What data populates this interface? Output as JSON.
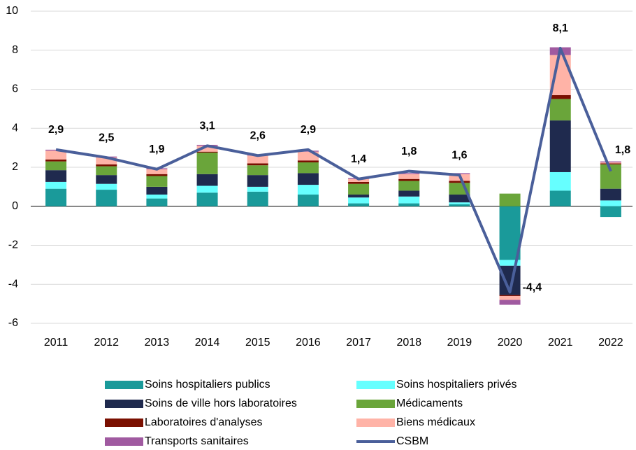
{
  "chart_data": {
    "type": "bar",
    "categories": [
      "2011",
      "2012",
      "2013",
      "2014",
      "2015",
      "2016",
      "2017",
      "2018",
      "2019",
      "2020",
      "2021",
      "2022"
    ],
    "series": [
      {
        "name": "Soins hospitaliers publics",
        "color": "#1a9a9a",
        "values": [
          0.9,
          0.85,
          0.4,
          0.7,
          0.75,
          0.6,
          0.15,
          0.15,
          0.1,
          -2.75,
          0.8,
          -0.55
        ]
      },
      {
        "name": "Soins hospitaliers privés",
        "color": "#66ffff",
        "values": [
          0.35,
          0.3,
          0.2,
          0.35,
          0.25,
          0.5,
          0.3,
          0.35,
          0.1,
          -0.3,
          0.95,
          0.3
        ]
      },
      {
        "name": "Soins de ville hors laboratoires",
        "color": "#1f2a4e",
        "values": [
          0.6,
          0.45,
          0.4,
          0.6,
          0.6,
          0.6,
          0.15,
          0.3,
          0.4,
          -1.5,
          2.65,
          0.6
        ]
      },
      {
        "name": "Médicaments",
        "color": "#6aa53a",
        "values": [
          0.45,
          0.45,
          0.55,
          1.1,
          0.5,
          0.55,
          0.55,
          0.5,
          0.6,
          0.65,
          1.1,
          1.25
        ]
      },
      {
        "name": "Laboratoires d'analyses",
        "color": "#7a0f00",
        "values": [
          0.1,
          0.1,
          0.1,
          0.05,
          0.1,
          0.1,
          0.1,
          0.1,
          0.1,
          -0.05,
          0.2,
          0.05
        ]
      },
      {
        "name": "Biens médicaux",
        "color": "#ffb3a7",
        "values": [
          0.45,
          0.35,
          0.25,
          0.3,
          0.4,
          0.45,
          0.15,
          0.25,
          0.35,
          -0.2,
          2.05,
          0.05
        ]
      },
      {
        "name": "Transports sanitaires",
        "color": "#a05aa0",
        "values": [
          0.05,
          0.05,
          0.05,
          0.05,
          0.05,
          0.05,
          0.05,
          0.05,
          0.05,
          -0.25,
          0.4,
          0.05
        ]
      },
      {
        "name": "CSBM",
        "color": "#4a5f9a",
        "type": "line",
        "values": [
          2.9,
          2.5,
          1.9,
          3.1,
          2.6,
          2.9,
          1.4,
          1.8,
          1.6,
          -4.4,
          8.1,
          1.8
        ],
        "value_labels": [
          "2,9",
          "2,5",
          "1,9",
          "3,1",
          "2,6",
          "2,9",
          "1,4",
          "1,8",
          "1,6",
          "-4,4",
          "8,1",
          "1,8"
        ]
      }
    ],
    "stacked": true,
    "ylim": [
      -6,
      10
    ],
    "yticks": [
      -6,
      -4,
      -2,
      0,
      2,
      4,
      6,
      8,
      10
    ],
    "grid": true
  }
}
